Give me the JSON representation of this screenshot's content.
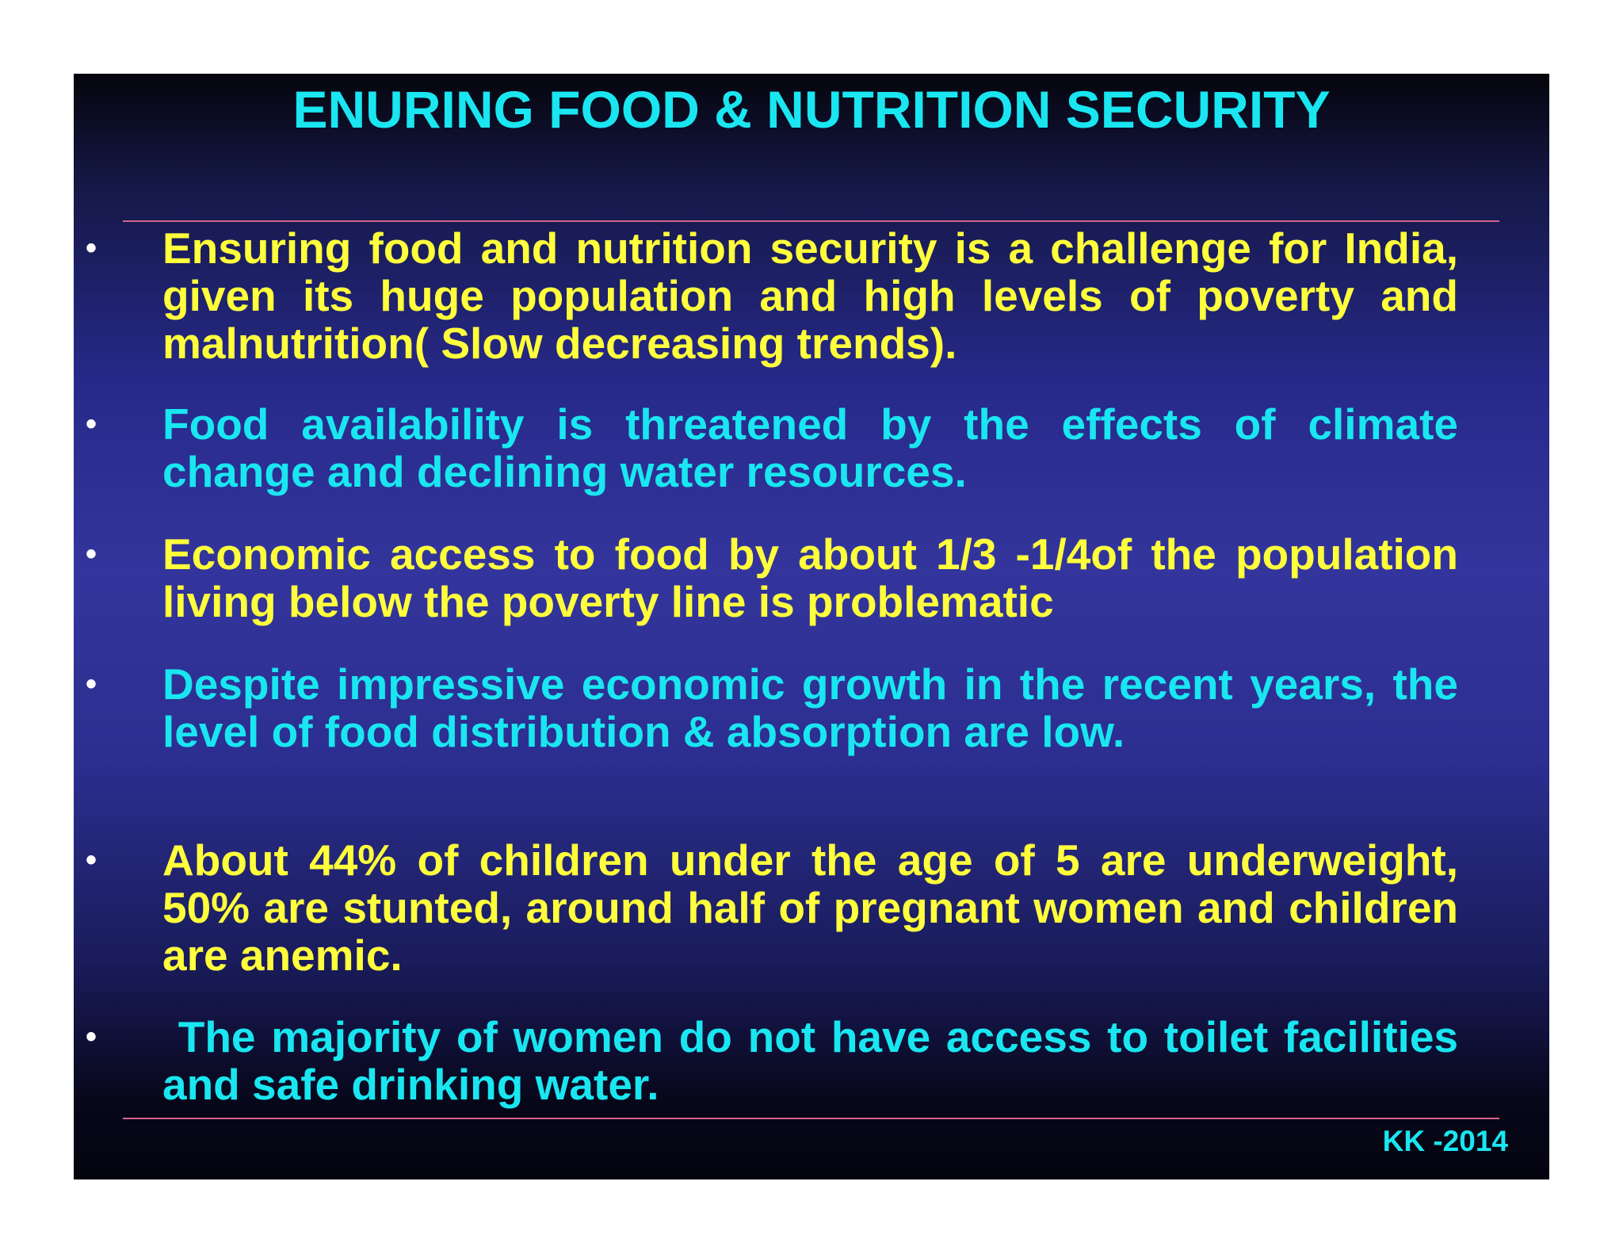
{
  "slide": {
    "title": "ENURING FOOD & NUTRITION SECURITY",
    "bullet_symbol": "•",
    "bullets": [
      {
        "text": "Ensuring food and nutrition security is a challenge for India, given its huge population and high levels of poverty and malnutrition( Slow decreasing trends).",
        "color": "#ffff3c"
      },
      {
        "text": "Food availability is threatened by the effects of climate change and declining water resources.",
        "color": "#19e6f0"
      },
      {
        "text": "Economic access to food by about 1/3 -1/4of the population living below the poverty line is problematic",
        "color": "#ffff3c"
      },
      {
        "text": "Despite impressive economic growth in the recent years, the level of food distribution & absorption are low.",
        "color": "#19e6f0"
      },
      {
        "text": "About 44% of children under the age of 5 are underweight, 50% are stunted, around half of pregnant women and children are anemic.",
        "color": "#ffff3c"
      },
      {
        "text": " The majority of women do not have access to toilet facilities and safe drinking water.",
        "color": "#19e6f0"
      }
    ],
    "footer": "KK -2014"
  },
  "colors": {
    "title": "#19e6f0",
    "footer": "#19e6f0",
    "rule": "#d4648c",
    "bullet_dot": "#ffffff"
  }
}
